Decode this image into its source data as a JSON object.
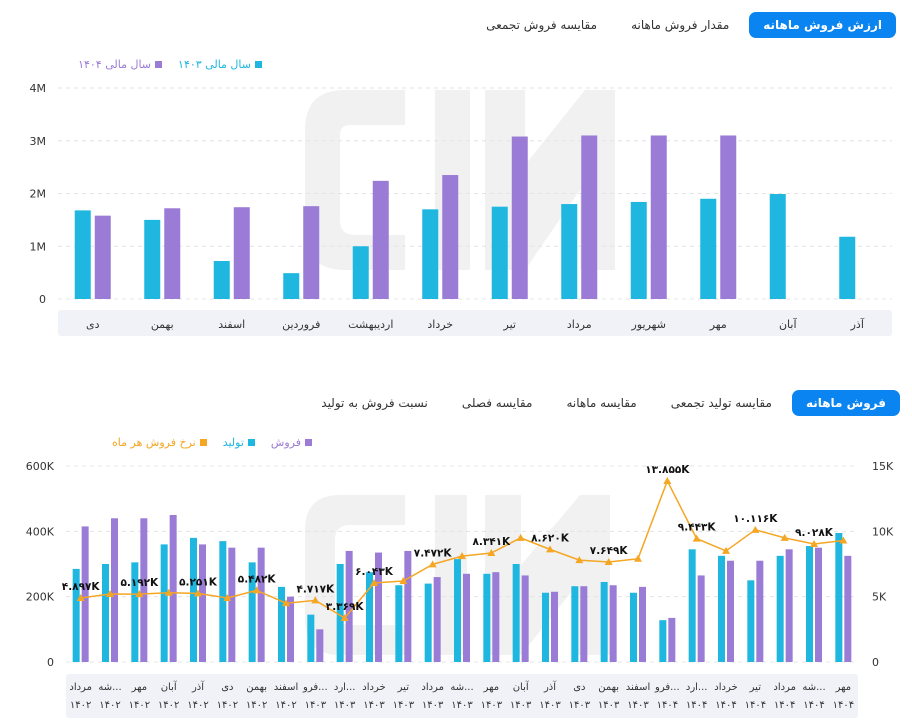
{
  "top_tabs": [
    "ارزش فروش ماهانه",
    "مقدار فروش ماهانه",
    "مقایسه فروش تجمعی"
  ],
  "bottom_tabs": [
    "فروش ماهانه",
    "مقایسه تولید تجمعی",
    "مقایسه ماهانه",
    "مقایسه فصلی",
    "نسبت فروش به تولید"
  ],
  "colors": {
    "cyan": "#1fb6e0",
    "purple": "#9a7cd6",
    "orange": "#f5a623",
    "accent": "#0a84f0"
  },
  "chart_data": [
    {
      "type": "bar",
      "categories": [
        "دی",
        "بهمن",
        "اسفند",
        "فروردین",
        "اردیبهشت",
        "خرداد",
        "تیر",
        "مرداد",
        "شهریور",
        "مهر",
        "آبان",
        "آذر"
      ],
      "series": [
        {
          "name": "سال مالی ۱۴۰۳",
          "color": "#1fb6e0",
          "values": [
            1.68,
            1.5,
            0.72,
            0.49,
            1.0,
            1.7,
            1.75,
            1.8,
            1.84,
            1.9,
            1.99,
            1.18
          ]
        },
        {
          "name": "سال مالی ۱۴۰۴",
          "color": "#9a7cd6",
          "values": [
            1.58,
            1.72,
            1.74,
            1.76,
            2.24,
            2.35,
            3.08,
            3.1,
            3.1,
            3.1,
            null,
            null
          ]
        }
      ],
      "yticks": [
        "0",
        "1M",
        "2M",
        "3M",
        "4M"
      ],
      "ylim": [
        0,
        4
      ]
    },
    {
      "type": "bar+line",
      "categories": [
        [
          "مرداد",
          "۱۴۰۲"
        ],
        [
          "شه...",
          "۱۴۰۲"
        ],
        [
          "مهر",
          "۱۴۰۲"
        ],
        [
          "آبان",
          "۱۴۰۲"
        ],
        [
          "آذر",
          "۱۴۰۲"
        ],
        [
          "دی",
          "۱۴۰۲"
        ],
        [
          "بهمن",
          "۱۴۰۲"
        ],
        [
          "اسفند",
          "۱۴۰۲"
        ],
        [
          "فرو...",
          "۱۴۰۳"
        ],
        [
          "ارد...",
          "۱۴۰۳"
        ],
        [
          "خرداد",
          "۱۴۰۳"
        ],
        [
          "تیر",
          "۱۴۰۳"
        ],
        [
          "مرداد",
          "۱۴۰۳"
        ],
        [
          "شه...",
          "۱۴۰۳"
        ],
        [
          "مهر",
          "۱۴۰۳"
        ],
        [
          "آبان",
          "۱۴۰۳"
        ],
        [
          "آذر",
          "۱۴۰۳"
        ],
        [
          "دی",
          "۱۴۰۳"
        ],
        [
          "بهمن",
          "۱۴۰۳"
        ],
        [
          "اسفند",
          "۱۴۰۳"
        ],
        [
          "فرو...",
          "۱۴۰۴"
        ],
        [
          "ارد...",
          "۱۴۰۴"
        ],
        [
          "خرداد",
          "۱۴۰۴"
        ],
        [
          "تیر",
          "۱۴۰۴"
        ],
        [
          "مرداد",
          "۱۴۰۴"
        ],
        [
          "شه...",
          "۱۴۰۴"
        ],
        [
          "مهر",
          "۱۴۰۴"
        ]
      ],
      "series": [
        {
          "name": "فروش",
          "color": "#9a7cd6",
          "axis": "left",
          "values": [
            415,
            440,
            440,
            450,
            360,
            350,
            350,
            200,
            100,
            340,
            335,
            340,
            260,
            270,
            275,
            265,
            215,
            232,
            235,
            230,
            135,
            265,
            310,
            310,
            345,
            350,
            325
          ]
        },
        {
          "name": "تولید",
          "color": "#1fb6e0",
          "axis": "left",
          "values": [
            285,
            300,
            305,
            360,
            380,
            370,
            305,
            230,
            145,
            300,
            275,
            235,
            240,
            315,
            270,
            300,
            212,
            232,
            245,
            212,
            128,
            345,
            325,
            250,
            325,
            355,
            395
          ]
        },
        {
          "name": "نرخ فروش هر ماه",
          "color": "#f5a623",
          "axis": "right",
          "values": [
            4.897,
            5.2,
            5.192,
            5.3,
            5.251,
            4.9,
            5.482,
            4.5,
            4.717,
            3.369,
            6.043,
            6.2,
            7.472,
            8.1,
            8.341,
            9.5,
            8.62,
            7.8,
            7.649,
            7.9,
            13.855,
            9.443,
            8.5,
            10.116,
            9.5,
            9.028,
            9.3
          ]
        }
      ],
      "labels": [
        {
          "index": 0,
          "text": "۴.۸۹۷K"
        },
        {
          "index": 2,
          "text": "۵.۱۹۲K"
        },
        {
          "index": 4,
          "text": "۵.۲۵۱K"
        },
        {
          "index": 6,
          "text": "۵.۴۸۲K"
        },
        {
          "index": 8,
          "text": "۴.۷۱۷K"
        },
        {
          "index": 9,
          "text": "۳.۳۶۹K"
        },
        {
          "index": 10,
          "text": "۶.۰۴۳K"
        },
        {
          "index": 12,
          "text": "۷.۴۷۲K"
        },
        {
          "index": 14,
          "text": "۸.۳۴۱K"
        },
        {
          "index": 16,
          "text": "۸.۶۲۰K"
        },
        {
          "index": 18,
          "text": "۷.۶۴۹K"
        },
        {
          "index": 20,
          "text": "۱۳.۸۵۵K"
        },
        {
          "index": 21,
          "text": "۹.۴۴۳K"
        },
        {
          "index": 23,
          "text": "۱۰.۱۱۶K"
        },
        {
          "index": 25,
          "text": "۹.۰۲۸K"
        }
      ],
      "yticks_left": [
        "0",
        "200K",
        "400K",
        "600K"
      ],
      "ylim_left": [
        0,
        600
      ],
      "yticks_right": [
        "0",
        "5K",
        "10K",
        "15K"
      ],
      "ylim_right": [
        0,
        15
      ]
    }
  ]
}
